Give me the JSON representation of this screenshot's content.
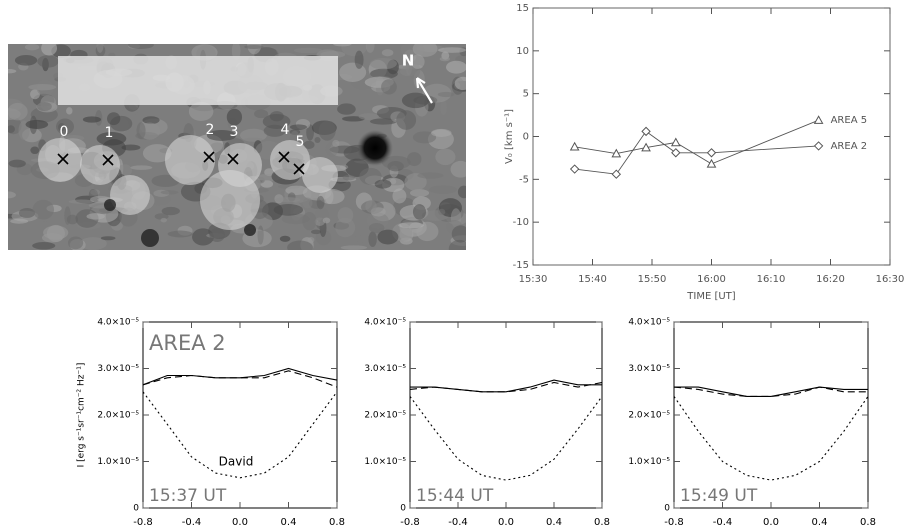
{
  "image": {
    "labels": [
      "0",
      "1",
      "2",
      "3",
      "4",
      "5"
    ],
    "compass": "N"
  },
  "chart_data": [
    {
      "type": "line",
      "x_label": "TIME [UT]",
      "y_label": "V₀ [km s⁻¹]",
      "x": [
        "15:37",
        "15:44",
        "15:49",
        "15:54",
        "16:00",
        "16:18"
      ],
      "xlim": [
        "15:30",
        "16:30"
      ],
      "xticks": [
        "15:30",
        "15:40",
        "15:50",
        "16:00",
        "16:10",
        "16:20",
        "16:30"
      ],
      "ylim": [
        -15,
        15
      ],
      "yticks": [
        -15,
        -10,
        -5,
        0,
        5,
        10,
        15
      ],
      "series": [
        {
          "name": "AREA 5",
          "color": "#555555",
          "marker": "triangle",
          "values": [
            -1.2,
            -2.0,
            -1.3,
            -0.7,
            -3.2,
            1.9
          ]
        },
        {
          "name": "AREA 2",
          "color": "#555555",
          "marker": "diamond",
          "values": [
            -3.8,
            -4.4,
            0.6,
            -1.9,
            -1.9,
            -1.1
          ]
        }
      ]
    },
    {
      "type": "line",
      "label": "AREA 2",
      "note": "David",
      "time": "15:37 UT",
      "y_label": "I [erg s⁻¹sr⁻¹cm⁻² Hz⁻¹]",
      "x": [
        -0.8,
        -0.6,
        -0.4,
        -0.2,
        0,
        0.2,
        0.4,
        0.6,
        0.8
      ],
      "xlim": [
        -0.8,
        0.8
      ],
      "xticks": [
        -0.8,
        -0.4,
        {
          "value": 0,
          "label": "0.0"
        },
        0.4,
        0.8
      ],
      "ylim": [
        0,
        4e-05
      ],
      "yticks": [
        0,
        {
          "value": 1e-05,
          "label": "1.0×10⁻⁵"
        },
        {
          "value": 2e-05,
          "label": "2.0×10⁻⁵"
        },
        {
          "value": 3e-05,
          "label": "3.0×10⁻⁵"
        },
        {
          "value": 4e-05,
          "label": "4.0×10⁻⁵"
        }
      ],
      "series": [
        {
          "style": "solid",
          "color": "#000000",
          "values": [
            2.65e-05,
            2.85e-05,
            2.85e-05,
            2.8e-05,
            2.8e-05,
            2.85e-05,
            3e-05,
            2.85e-05,
            2.75e-05
          ]
        },
        {
          "style": "dashed",
          "color": "#000000",
          "values": [
            2.65e-05,
            2.8e-05,
            2.85e-05,
            2.8e-05,
            2.8e-05,
            2.8e-05,
            2.95e-05,
            2.8e-05,
            2.6e-05
          ]
        },
        {
          "style": "dotted",
          "color": "#000000",
          "values": [
            2.5e-05,
            1.8e-05,
            1.1e-05,
            7.5e-06,
            6.5e-06,
            7.5e-06,
            1.1e-05,
            1.8e-05,
            2.5e-05
          ]
        }
      ]
    },
    {
      "type": "line",
      "time": "15:44 UT",
      "x": [
        -0.8,
        -0.6,
        -0.4,
        -0.2,
        0,
        0.2,
        0.4,
        0.6,
        0.8
      ],
      "xlim": [
        -0.8,
        0.8
      ],
      "xticks": [
        -0.8,
        -0.4,
        {
          "value": 0,
          "label": "0.0"
        },
        0.4,
        0.8
      ],
      "ylim": [
        0,
        4e-05
      ],
      "yticks": [
        0,
        {
          "value": 1e-05,
          "label": "1.0×10⁻⁵"
        },
        {
          "value": 2e-05,
          "label": "2.0×10⁻⁵"
        },
        {
          "value": 3e-05,
          "label": "3.0×10⁻⁵"
        },
        {
          "value": 4e-05,
          "label": "4.0×10⁻⁵"
        }
      ],
      "series": [
        {
          "style": "solid",
          "color": "#000000",
          "values": [
            2.6e-05,
            2.6e-05,
            2.55e-05,
            2.5e-05,
            2.5e-05,
            2.6e-05,
            2.75e-05,
            2.65e-05,
            2.65e-05
          ]
        },
        {
          "style": "dashed",
          "color": "#000000",
          "values": [
            2.55e-05,
            2.6e-05,
            2.55e-05,
            2.5e-05,
            2.5e-05,
            2.55e-05,
            2.7e-05,
            2.6e-05,
            2.7e-05
          ]
        },
        {
          "style": "dotted",
          "color": "#000000",
          "values": [
            2.4e-05,
            1.7e-05,
            1.05e-05,
            7e-06,
            6e-06,
            7e-06,
            1.05e-05,
            1.7e-05,
            2.4e-05
          ]
        }
      ]
    },
    {
      "type": "line",
      "time": "15:49 UT",
      "x": [
        -0.8,
        -0.6,
        -0.4,
        -0.2,
        0,
        0.2,
        0.4,
        0.6,
        0.8
      ],
      "xlim": [
        -0.8,
        0.8
      ],
      "xticks": [
        -0.8,
        -0.4,
        {
          "value": 0,
          "label": "0.0"
        },
        0.4,
        0.8
      ],
      "ylim": [
        0,
        4e-05
      ],
      "yticks": [
        0,
        {
          "value": 1e-05,
          "label": "1.0×10⁻⁵"
        },
        {
          "value": 2e-05,
          "label": "2.0×10⁻⁵"
        },
        {
          "value": 3e-05,
          "label": "3.0×10⁻⁵"
        },
        {
          "value": 4e-05,
          "label": "4.0×10⁻⁵"
        }
      ],
      "series": [
        {
          "style": "solid",
          "color": "#000000",
          "values": [
            2.6e-05,
            2.6e-05,
            2.5e-05,
            2.4e-05,
            2.4e-05,
            2.5e-05,
            2.6e-05,
            2.55e-05,
            2.55e-05
          ]
        },
        {
          "style": "dashed",
          "color": "#000000",
          "values": [
            2.6e-05,
            2.55e-05,
            2.45e-05,
            2.4e-05,
            2.4e-05,
            2.45e-05,
            2.6e-05,
            2.5e-05,
            2.5e-05
          ]
        },
        {
          "style": "dotted",
          "color": "#000000",
          "values": [
            2.4e-05,
            1.65e-05,
            1e-05,
            7e-06,
            6e-06,
            7e-06,
            1e-05,
            1.65e-05,
            2.4e-05
          ]
        }
      ]
    }
  ]
}
